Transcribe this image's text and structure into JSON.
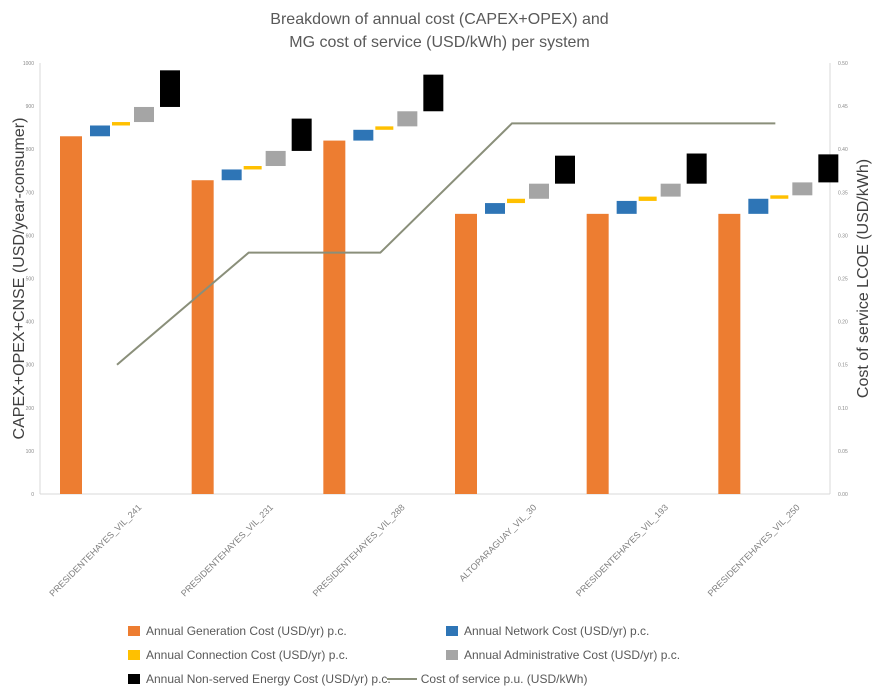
{
  "chart_data": {
    "type": "bar",
    "title": "Breakdown of annual cost (CAPEX+OPEX) and\nMG cost of service (USD/kWh) per system",
    "title_lines": [
      "Breakdown of annual cost (CAPEX+OPEX) and",
      "MG cost of service (USD/kWh) per system"
    ],
    "ylabel": "CAPEX+OPEX+CNSE (USD/year-consumer)",
    "y2label": "Cost of service LCOE (USD/kWh)",
    "ylim": [
      0,
      1000
    ],
    "y_ticks": [
      "0",
      "100",
      "200",
      "300",
      "400",
      "500",
      "600",
      "700",
      "800",
      "900",
      "1000"
    ],
    "y2lim": [
      0.0,
      0.5
    ],
    "y2_ticks": [
      "0.00",
      "0.05",
      "0.10",
      "0.15",
      "0.20",
      "0.25",
      "0.30",
      "0.35",
      "0.40",
      "0.45",
      "0.50"
    ],
    "categories": [
      "PRESIDENTEHAYES_VIL_241",
      "PRESIDENTEHAYES_VIL_231",
      "PRESIDENTEHAYES_VIL_288",
      "ALTOPARAGUAY_VIL_30",
      "PRESIDENTEHAYES_VIL_193",
      "PRESIDENTEHAYES_VIL_250"
    ],
    "series": [
      {
        "name": "Annual Generation Cost (USD/yr) p.c.",
        "color": "#ed7d31",
        "values": [
          830,
          728,
          820,
          650,
          650,
          650
        ]
      },
      {
        "name": "Annual Network Cost (USD/yr) p.c.",
        "color": "#2e75b6",
        "values": [
          25,
          25,
          25,
          25,
          30,
          35
        ]
      },
      {
        "name": "Annual Connection Cost (USD/yr) p.c.",
        "color": "#ffc000",
        "values": [
          8,
          8,
          8,
          10,
          10,
          8
        ]
      },
      {
        "name": "Annual Administrative Cost (USD/yr) p.c.",
        "color": "#a5a5a5",
        "values": [
          35,
          35,
          35,
          35,
          30,
          30
        ]
      },
      {
        "name": "Annual Non-served Energy Cost (USD/yr) p.c.",
        "color": "#000000",
        "values": [
          85,
          75,
          85,
          65,
          70,
          65
        ]
      }
    ],
    "line_series": {
      "name": "Cost of service p.u. (USD/kWh)",
      "color": "#8a8f7a",
      "values": [
        0.15,
        0.28,
        0.28,
        0.43,
        0.43,
        0.43
      ]
    },
    "legend_position": "bottom",
    "grid": false
  }
}
